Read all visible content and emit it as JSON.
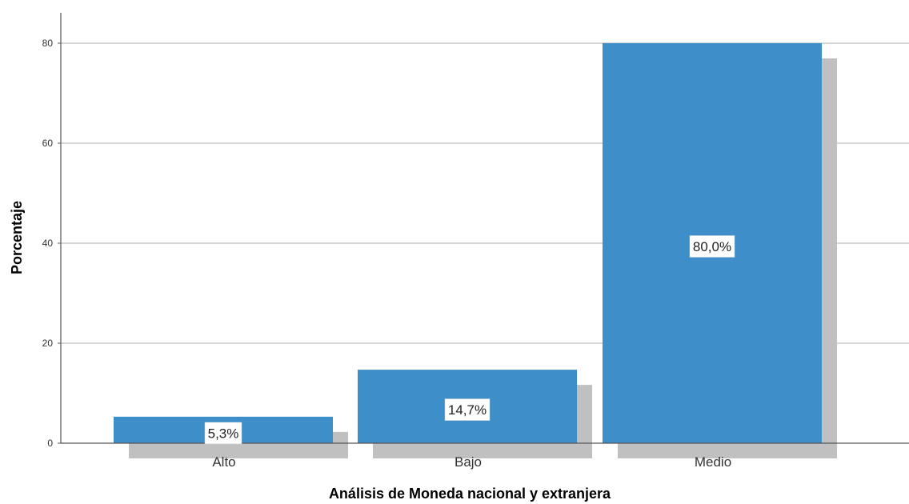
{
  "chart_data": {
    "type": "bar",
    "title": "",
    "xlabel": "Análisis de Moneda nacional y extranjera",
    "ylabel": "Porcentaje",
    "categories": [
      "Alto",
      "Bajo",
      "Medio"
    ],
    "values": [
      5.3,
      14.7,
      80.0
    ],
    "data_labels": [
      "5,3%",
      "14,7%",
      "80,0%"
    ],
    "ylim": [
      0,
      85
    ],
    "yticks": [
      0,
      20,
      40,
      60,
      80
    ],
    "grid": true,
    "legend": "none",
    "bar_color": "#3d8ec9",
    "shadow_color": "#c0c0c0",
    "grid_color": "#bdbdbd",
    "axis_color": "#555555"
  }
}
